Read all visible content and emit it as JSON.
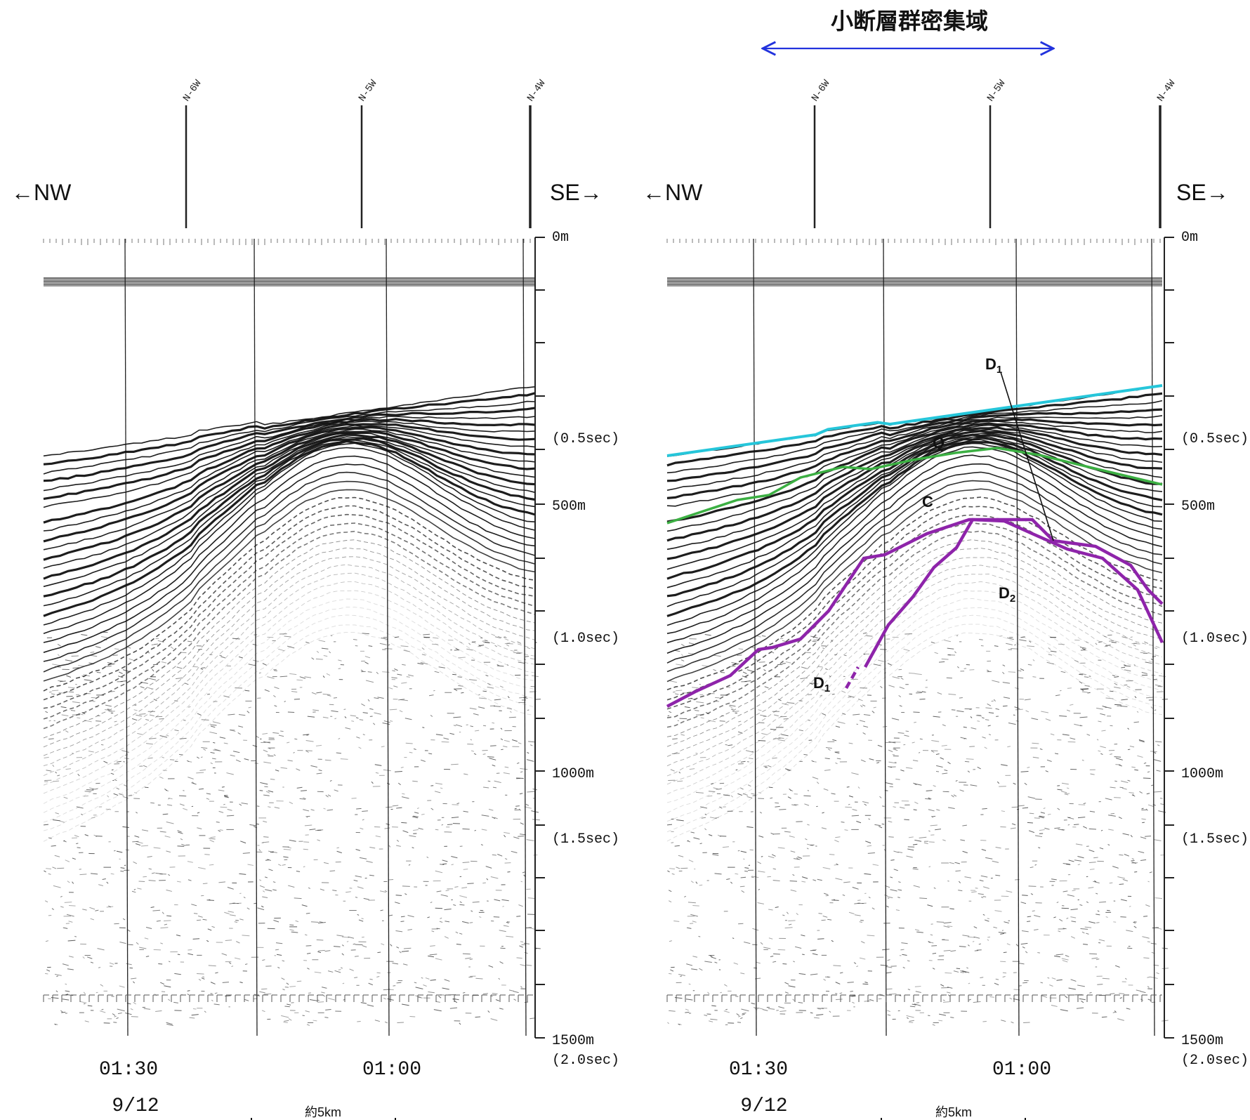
{
  "panels": [
    {
      "id": "original",
      "direction_left": "←NW",
      "direction_right": "SE→",
      "stations": [
        "N-6W",
        "N-5W",
        "N-4W"
      ],
      "time_labels": [
        "01:30",
        "01:00"
      ],
      "date_label": "9/12",
      "scale_label": "約5km",
      "depth_labels": [
        "0m",
        "(0.5sec)",
        "500m",
        "(1.0sec)",
        "1000m",
        "(1.5sec)",
        "1500m",
        "(2.0sec)"
      ],
      "annotations": []
    },
    {
      "id": "interpreted",
      "direction_left": "←NW",
      "direction_right": "SE→",
      "stations": [
        "N-6W",
        "N-5W",
        "N-4W"
      ],
      "time_labels": [
        "01:30",
        "01:00"
      ],
      "date_label": "9/12",
      "scale_label": "約5km",
      "depth_labels": [
        "0m",
        "(0.5sec)",
        "500m",
        "(1.0sec)",
        "1000m",
        "(1.5sec)",
        "1500m",
        "(2.0sec)"
      ],
      "annotations": [
        "D1",
        "Q",
        "C",
        "D2",
        "D1"
      ]
    }
  ],
  "zone": {
    "title": "小断層群密集域"
  },
  "layer_colors": {
    "seafloor": "#26c6da",
    "Q_boundary": "#3cb043",
    "D_boundary": "#8e24aa"
  }
}
